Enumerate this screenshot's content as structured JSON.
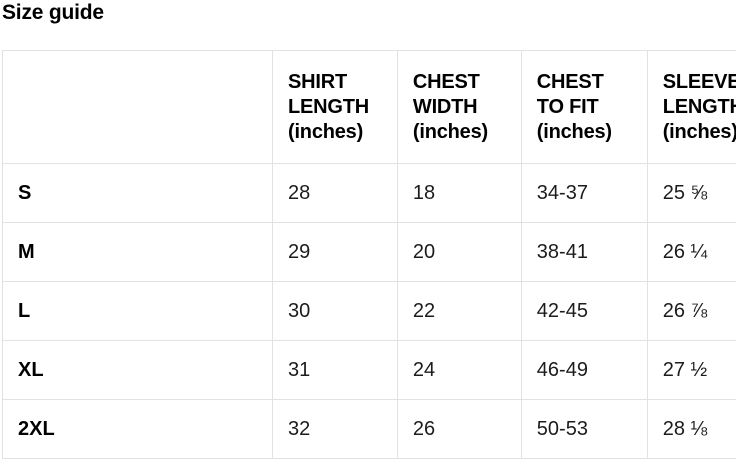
{
  "page_title": "Size guide",
  "colors": {
    "background": "#ffffff",
    "heading_text": "#000000",
    "value_text": "#1c1c1c",
    "table_border": "#e2e2e2"
  },
  "table": {
    "columns": [
      {
        "label": ""
      },
      {
        "label": "SHIRT\nLENGTH\n(inches)"
      },
      {
        "label": "CHEST\nWIDTH\n(inches)"
      },
      {
        "label": "CHEST\nTO FIT\n(inches)"
      },
      {
        "label": "SLEEVE\nLENGTH\n(inches)"
      }
    ],
    "rows": [
      {
        "size": "S",
        "values": [
          "28",
          "18",
          "34-37",
          "25 ⅝"
        ]
      },
      {
        "size": "M",
        "values": [
          "29",
          "20",
          "38-41",
          "26 ¼"
        ]
      },
      {
        "size": "L",
        "values": [
          "30",
          "22",
          "42-45",
          "26 ⅞"
        ]
      },
      {
        "size": "XL",
        "values": [
          "31",
          "24",
          "46-49",
          "27 ½"
        ]
      },
      {
        "size": "2XL",
        "values": [
          "32",
          "26",
          "50-53",
          "28 ⅛"
        ]
      }
    ]
  }
}
